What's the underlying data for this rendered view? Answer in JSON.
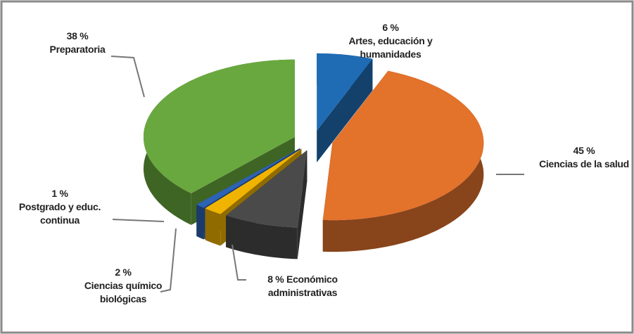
{
  "chart_data": {
    "type": "pie",
    "categories": [
      "Artes, educación y humanidades",
      "Ciencias de la salud",
      "Económico administrativas",
      "Ciencias químico biológicas",
      "Postgrado y educ. continua",
      "Preparatoria"
    ],
    "values": [
      6,
      45,
      8,
      2,
      1,
      38
    ],
    "value_labels": [
      "6 %",
      "45 %",
      "8 %",
      "2 %",
      "1 %",
      "38 %"
    ],
    "colors": [
      "#1f6cb4",
      "#e3722b",
      "#4a4a4a",
      "#f0b400",
      "#2d63b5",
      "#69a83e"
    ]
  }
}
